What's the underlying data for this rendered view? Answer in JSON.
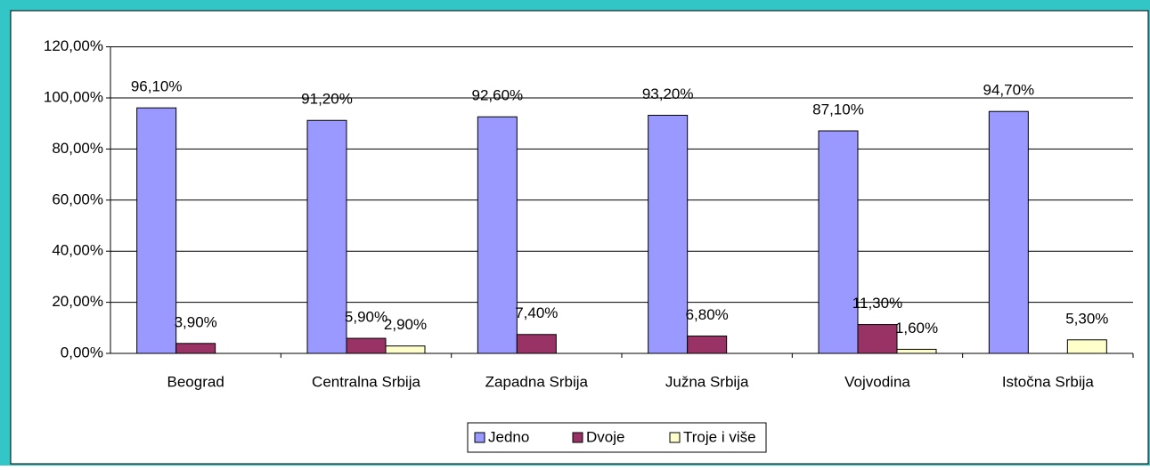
{
  "chart_data": {
    "type": "bar",
    "categories": [
      "Beograd",
      "Centralna Srbija",
      "Zapadna Srbija",
      "Južna Srbija",
      "Vojvodina",
      "Istočna Srbija"
    ],
    "series": [
      {
        "name": "Jedno",
        "color": "#9999ff",
        "values": [
          96.1,
          91.2,
          92.6,
          93.2,
          87.1,
          94.7
        ],
        "value_labels": [
          "96,10%",
          "91,20%",
          "92,60%",
          "93,20%",
          "87,10%",
          "94,70%"
        ]
      },
      {
        "name": "Dvoje",
        "color": "#993366",
        "values": [
          3.9,
          5.9,
          7.4,
          6.8,
          11.3,
          null
        ],
        "value_labels": [
          "3,90%",
          "5,90%",
          "7,40%",
          "6,80%",
          "11,30%",
          null
        ]
      },
      {
        "name": "Troje i više",
        "color": "#ffffcc",
        "values": [
          null,
          2.9,
          null,
          null,
          1.6,
          5.3
        ],
        "value_labels": [
          null,
          "2,90%",
          null,
          null,
          "1,60%",
          "5,30%"
        ]
      }
    ],
    "ylim": [
      0,
      120
    ],
    "yticks": [
      {
        "value": 0,
        "label": "0,00%"
      },
      {
        "value": 20,
        "label": "20,00%"
      },
      {
        "value": 40,
        "label": "40,00%"
      },
      {
        "value": 60,
        "label": "60,00%"
      },
      {
        "value": 80,
        "label": "80,00%"
      },
      {
        "value": 100,
        "label": "100,00%"
      },
      {
        "value": 120,
        "label": "120,00%"
      }
    ],
    "grid": true,
    "legend": "bottom"
  }
}
